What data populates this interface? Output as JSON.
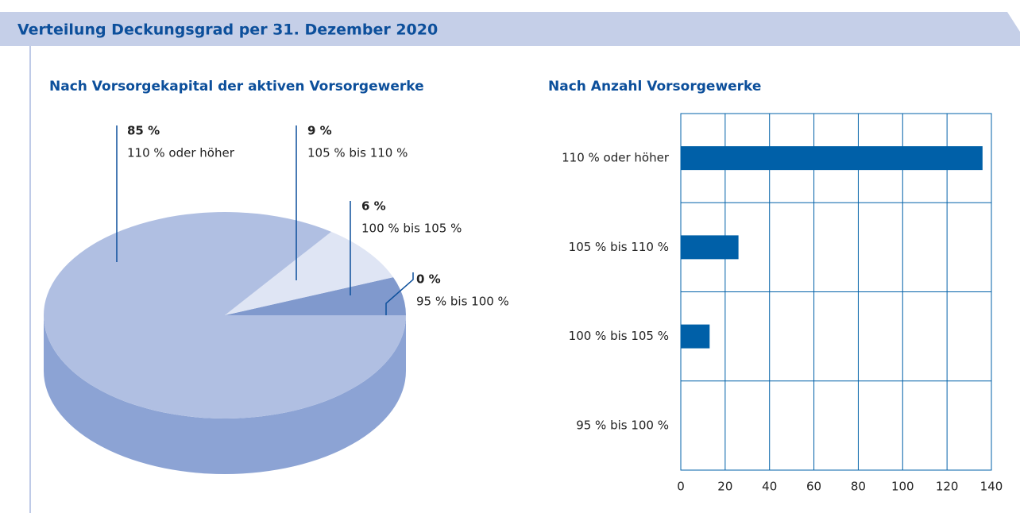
{
  "header": {
    "title": "Verteilung Deckungsgrad per 31. Dezember 2020"
  },
  "chart_data": [
    {
      "type": "pie",
      "title": "Nach Vorsorgekapital der aktiven Vorsorgewerke",
      "categories": [
        "110 % oder höher",
        "105 % bis 110 %",
        "100 % bis 105 %",
        "95 % bis 100 %"
      ],
      "values": [
        85,
        9,
        6,
        0
      ],
      "value_labels": [
        "85 %",
        "9 %",
        "6 %",
        "0 %"
      ],
      "colors": [
        "#b0bfe2",
        "#dfe5f4",
        "#8099cd",
        "#5e7fc0"
      ]
    },
    {
      "type": "bar",
      "orientation": "horizontal",
      "title": "Nach Anzahl Vorsorgewerke",
      "categories": [
        "110 % oder höher",
        "105 % bis 110 %",
        "100 % bis 105 %",
        "95 % bis 100 %"
      ],
      "values": [
        136,
        26,
        13,
        0
      ],
      "color": "#0060a8",
      "xlim": [
        0,
        140
      ],
      "xticks": [
        0,
        20,
        40,
        60,
        80,
        100,
        120,
        140
      ],
      "grid": true
    }
  ]
}
